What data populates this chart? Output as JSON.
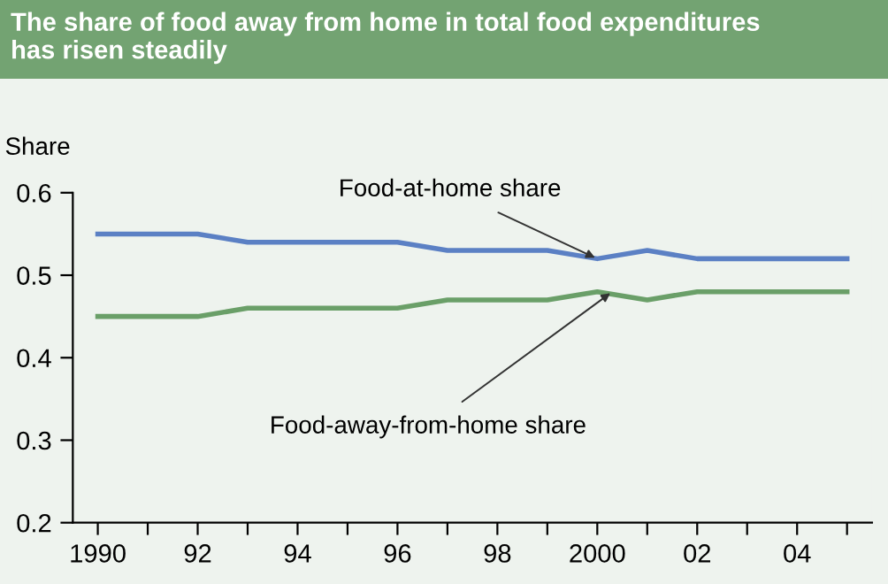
{
  "chart_data": {
    "type": "line",
    "title": "The share of food away from home in total food expenditures\nhas risen steadily",
    "ylabel": "Share",
    "x": [
      1990,
      1991,
      1992,
      1993,
      1994,
      1995,
      1996,
      1997,
      1998,
      1999,
      2000,
      2001,
      2002,
      2003,
      2004,
      2005
    ],
    "series": [
      {
        "name": "Food-at-home share",
        "color": "#5b80c4",
        "values": [
          0.55,
          0.55,
          0.55,
          0.54,
          0.54,
          0.54,
          0.54,
          0.53,
          0.53,
          0.53,
          0.52,
          0.53,
          0.52,
          0.52,
          0.52,
          0.52
        ]
      },
      {
        "name": "Food-away-from-home share",
        "color": "#6a9f68",
        "values": [
          0.45,
          0.45,
          0.45,
          0.46,
          0.46,
          0.46,
          0.46,
          0.47,
          0.47,
          0.47,
          0.48,
          0.47,
          0.48,
          0.48,
          0.48,
          0.48
        ]
      }
    ],
    "xlim": [
      1989.5,
      2005.5
    ],
    "xticks": [
      1990,
      {
        "value": 1991,
        "label": null
      },
      {
        "value": 1992,
        "label": "92"
      },
      {
        "value": 1993,
        "label": null
      },
      {
        "value": 1994,
        "label": "94"
      },
      {
        "value": 1995,
        "label": null
      },
      {
        "value": 1996,
        "label": "96"
      },
      {
        "value": 1997,
        "label": null
      },
      {
        "value": 1998,
        "label": "98"
      },
      {
        "value": 1999,
        "label": null
      },
      2000,
      {
        "value": 2001,
        "label": null
      },
      {
        "value": 2002,
        "label": "02"
      },
      {
        "value": 2003,
        "label": null
      },
      {
        "value": 2004,
        "label": "04"
      },
      {
        "value": 2005,
        "label": null
      }
    ],
    "ylim": [
      0.2,
      0.6
    ],
    "yticks": [
      0.2,
      0.3,
      0.4,
      0.5,
      0.6
    ],
    "grid": false,
    "legend": false,
    "marker": "none",
    "line_style": "solid"
  }
}
